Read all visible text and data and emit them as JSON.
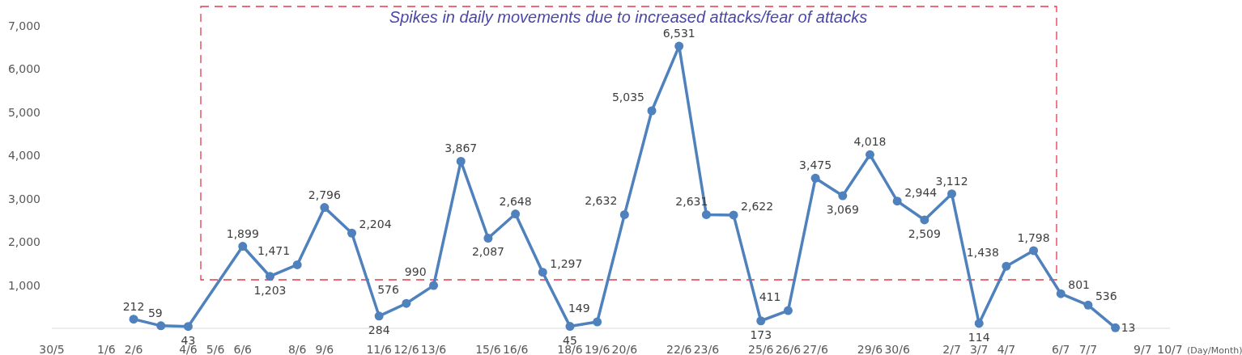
{
  "chart_data": {
    "type": "line",
    "xlabel": "(Day/Month)",
    "x": [
      "--06-02",
      "--06-03",
      "--06-04",
      "--06-06",
      "--06-07",
      "--06-08",
      "--06-09",
      "--06-10",
      "--06-11",
      "--06-12",
      "--06-13",
      "--06-14",
      "--06-15",
      "--06-16",
      "--06-17",
      "--06-18",
      "--06-19",
      "--06-20",
      "--06-21",
      "--06-22",
      "--06-23",
      "--06-24",
      "--06-25",
      "--06-26",
      "--06-27",
      "--06-28",
      "--06-29",
      "--06-30",
      "--07-01",
      "--07-02",
      "--07-03",
      "--07-04",
      "--07-05",
      "--07-06",
      "--07-07",
      "--07-08"
    ],
    "series": [
      {
        "color": "#4f81bd",
        "values": [
          212,
          59,
          43,
          1899,
          1203,
          1471,
          2796,
          2204,
          284,
          576,
          990,
          3867,
          2087,
          2648,
          1297,
          45,
          149,
          2632,
          5035,
          6531,
          2631,
          2622,
          173,
          411,
          3475,
          3069,
          4018,
          2944,
          2509,
          3112,
          114,
          1438,
          1798,
          801,
          536,
          13
        ]
      }
    ],
    "xlim": [
      "--05-30",
      "--07-10"
    ],
    "xticks": [
      {
        "value": "--05-30",
        "label": "30/5"
      },
      {
        "value": "--06-01",
        "label": "1/6"
      },
      {
        "value": "--06-02",
        "label": "2/6"
      },
      {
        "value": "--06-04",
        "label": "4/6"
      },
      {
        "value": "--06-05",
        "label": "5/6"
      },
      {
        "value": "--06-06",
        "label": "6/6"
      },
      {
        "value": "--06-08",
        "label": "8/6"
      },
      {
        "value": "--06-09",
        "label": "9/6"
      },
      {
        "value": "--06-11",
        "label": "11/6"
      },
      {
        "value": "--06-12",
        "label": "12/6"
      },
      {
        "value": "--06-13",
        "label": "13/6"
      },
      {
        "value": "--06-15",
        "label": "15/6"
      },
      {
        "value": "--06-16",
        "label": "16/6"
      },
      {
        "value": "--06-18",
        "label": "18/6"
      },
      {
        "value": "--06-19",
        "label": "19/6"
      },
      {
        "value": "--06-20",
        "label": "20/6"
      },
      {
        "value": "--06-22",
        "label": "22/6"
      },
      {
        "value": "--06-23",
        "label": "23/6"
      },
      {
        "value": "--06-25",
        "label": "25/6"
      },
      {
        "value": "--06-26",
        "label": "26/6"
      },
      {
        "value": "--06-27",
        "label": "27/6"
      },
      {
        "value": "--06-29",
        "label": "29/6"
      },
      {
        "value": "--06-30",
        "label": "30/6"
      },
      {
        "value": "--07-02",
        "label": "2/7"
      },
      {
        "value": "--07-03",
        "label": "3/7"
      },
      {
        "value": "--07-04",
        "label": "4/7"
      },
      {
        "value": "--07-06",
        "label": "6/7"
      },
      {
        "value": "--07-07",
        "label": "7/7"
      },
      {
        "value": "--07-09",
        "label": "9/7"
      },
      {
        "value": "--07-10",
        "label": "10/7"
      }
    ],
    "ylim": [
      0,
      7000
    ],
    "yticks": [
      {
        "value": 1000,
        "label": "1,000"
      },
      {
        "value": 2000,
        "label": "2,000"
      },
      {
        "value": 3000,
        "label": "3,000"
      },
      {
        "value": 4000,
        "label": "4,000"
      },
      {
        "value": 5000,
        "label": "5,000"
      },
      {
        "value": 6000,
        "label": "6,000"
      },
      {
        "value": 7000,
        "label": "7,000"
      }
    ],
    "grid": false,
    "marker": "circle",
    "line_style": "solid",
    "value_labels": [
      "212",
      "59",
      "43",
      "1,899",
      "1,203",
      "1,471",
      "2,796",
      "2,204",
      "284",
      "576",
      "990",
      "3,867",
      "2,087",
      "2,648",
      "1,297",
      "45",
      "149",
      "2,632",
      "5,035",
      "6,531",
      "2,631",
      "2,622",
      "173",
      "411",
      "3,475",
      "3,069",
      "4,018",
      "2,944",
      "2,509",
      "3,112",
      "114",
      "1,438",
      "1,798",
      "801",
      "536",
      "13"
    ],
    "annotations": [
      "Spikes in daily movements due to increased attacks/fear of attacks"
    ]
  }
}
